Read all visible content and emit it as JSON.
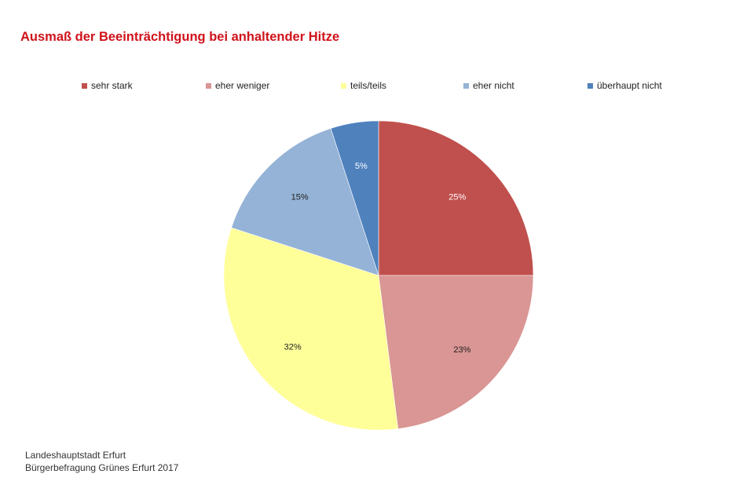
{
  "chart_data": {
    "type": "pie",
    "title": "Ausmaß der Beeinträchtigung bei anhaltender Hitze",
    "legend_position": "top",
    "categories": [
      "sehr stark",
      "eher weniger",
      "teils/teils",
      "eher nicht",
      "überhaupt nicht"
    ],
    "values": [
      25,
      23,
      32,
      15,
      5
    ],
    "data_labels": [
      "25%",
      "23%",
      "32%",
      "15%",
      "5%"
    ],
    "colors": [
      "#c0504d",
      "#d99694",
      "#ffff99",
      "#95b3d7",
      "#4f81bd"
    ],
    "label_colors": [
      "#ffffff",
      "#222222",
      "#222222",
      "#222222",
      "#ffffff"
    ]
  },
  "source": {
    "line1": "Landeshauptstadt Erfurt",
    "line2": "Bürgerbefragung Grünes Erfurt 2017"
  }
}
